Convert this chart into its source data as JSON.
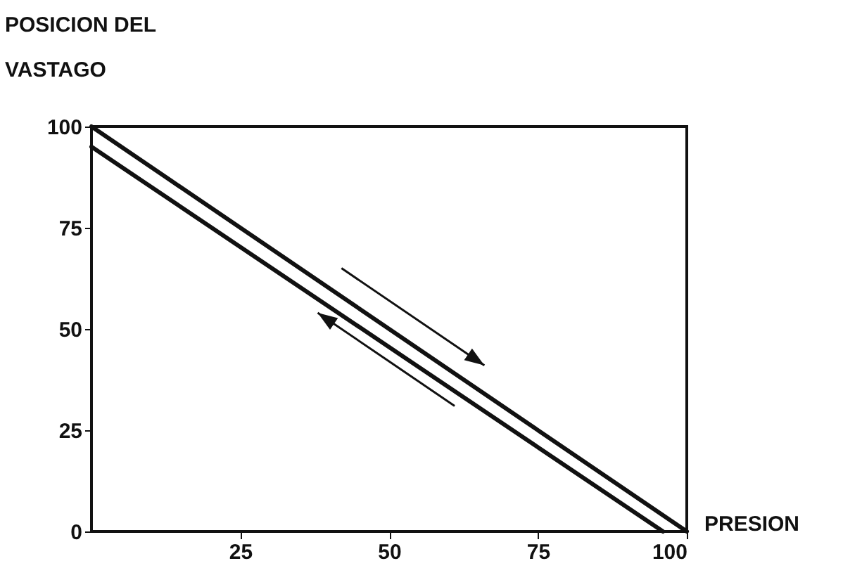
{
  "chart_data": {
    "type": "line",
    "ylabel": "POSICION DEL\nVASTAGO",
    "xlabel": "PRESION",
    "series": [
      {
        "color": "#111111",
        "x": [
          0,
          100
        ],
        "values": [
          100,
          0
        ]
      },
      {
        "color": "#111111",
        "x": [
          0,
          96
        ],
        "values": [
          95,
          0
        ]
      }
    ],
    "xlim": [
      0,
      100
    ],
    "ylim": [
      0,
      100
    ],
    "xticks": [
      25,
      50,
      75,
      100
    ],
    "yticks": [
      0,
      25,
      50,
      75,
      100
    ],
    "grid": false,
    "line_style": "solid",
    "marker": "none"
  }
}
